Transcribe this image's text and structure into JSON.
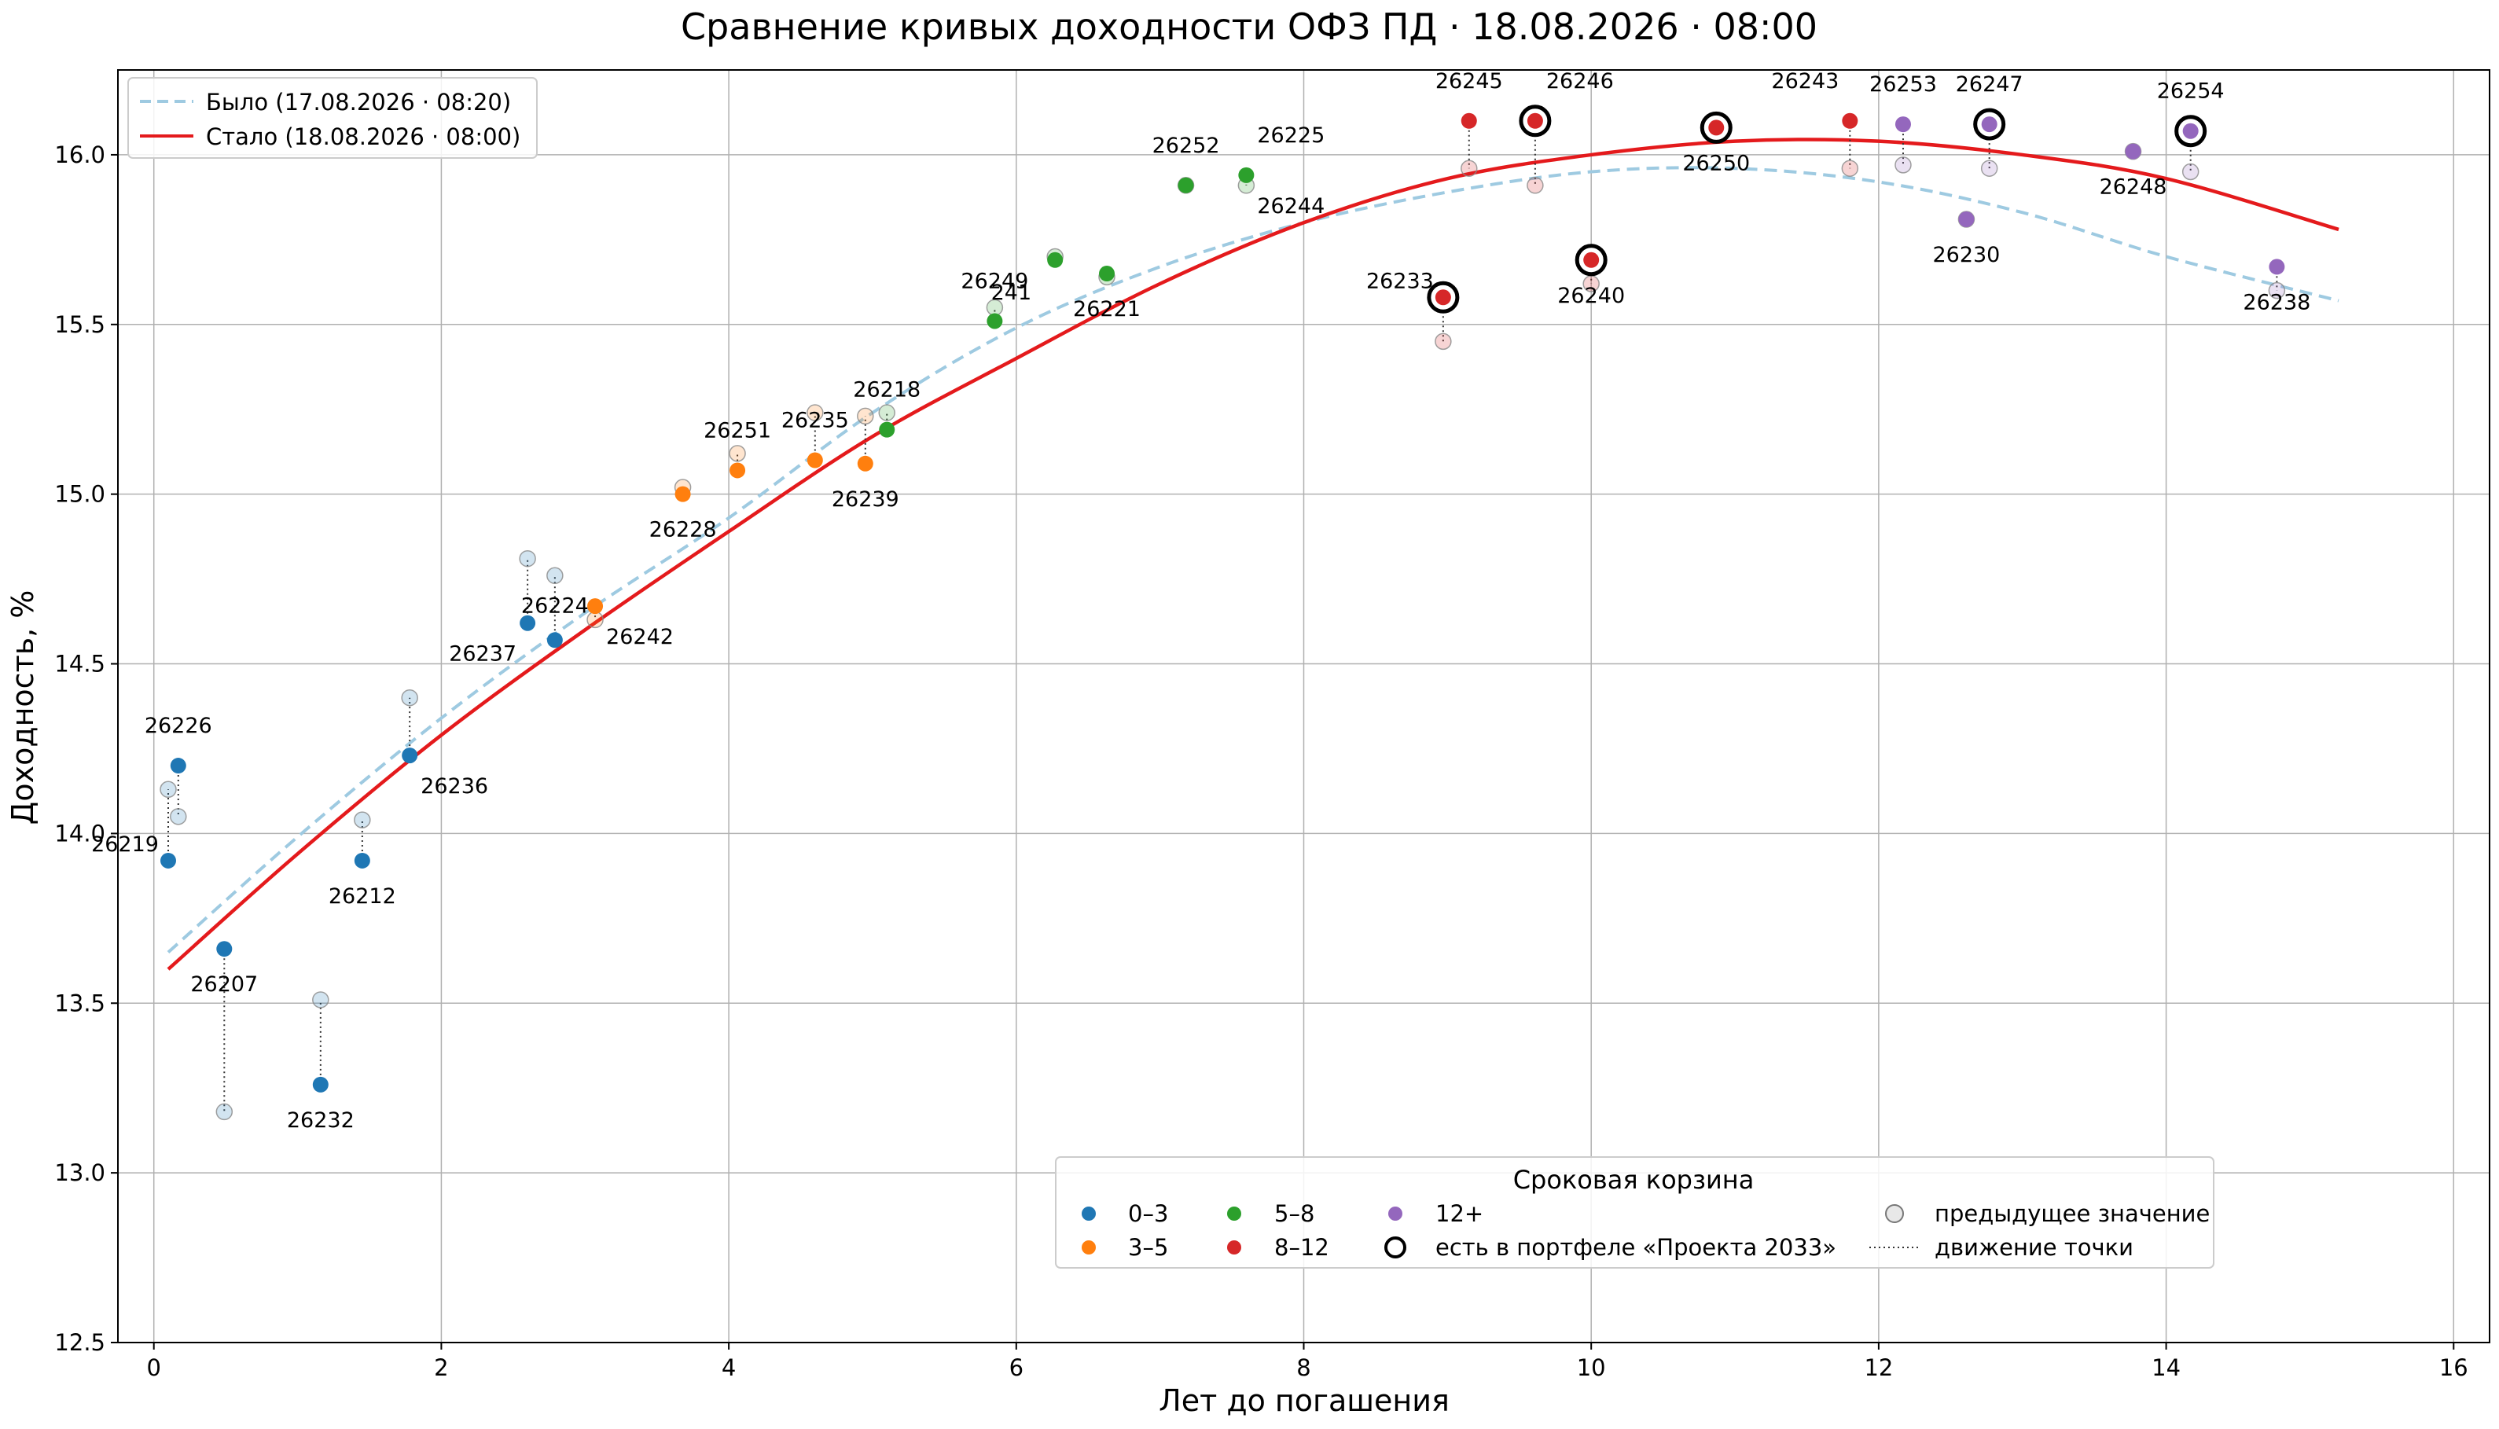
{
  "chart_data": {
    "type": "scatter",
    "title": "Сравнение кривых доходности ОФЗ ПД · 18.08.2026 · 08:00",
    "xlabel": "Лет до погашения",
    "ylabel": "Доходность, %",
    "xlim": [
      -0.25,
      16.25
    ],
    "ylim": [
      12.5,
      16.25
    ],
    "xticks": [
      0,
      2,
      4,
      6,
      8,
      10,
      12,
      14,
      16
    ],
    "yticks": [
      12.5,
      13.0,
      13.5,
      14.0,
      14.5,
      15.0,
      15.5,
      16.0
    ],
    "ytick_labels": [
      "12.5",
      "13.0",
      "13.5",
      "14.0",
      "14.5",
      "15.0",
      "15.5",
      "16.0"
    ],
    "grid": true,
    "curves": [
      {
        "name": "Было (17.08.2026 · 08:20)",
        "style": "dashed",
        "color": "#9ecae1",
        "x": [
          0.1,
          1,
          2,
          3,
          4,
          5,
          6,
          7,
          8,
          9,
          10,
          11,
          12,
          13,
          14,
          15.2
        ],
        "y": [
          13.65,
          13.99,
          14.34,
          14.65,
          14.93,
          15.24,
          15.49,
          15.67,
          15.8,
          15.89,
          15.95,
          15.96,
          15.92,
          15.83,
          15.7,
          15.57
        ]
      },
      {
        "name": "Стало (18.08.2026 · 08:00)",
        "style": "solid",
        "color": "#e41a1c",
        "x": [
          0.1,
          1,
          2,
          3,
          4,
          5,
          6,
          7,
          8,
          9,
          10,
          11,
          12,
          13,
          14,
          15.2
        ],
        "y": [
          13.6,
          13.94,
          14.29,
          14.6,
          14.89,
          15.17,
          15.4,
          15.62,
          15.8,
          15.93,
          16.0,
          16.04,
          16.04,
          16.0,
          15.93,
          15.78
        ]
      }
    ],
    "buckets": [
      {
        "name": "0–3",
        "color": "#1f77b4"
      },
      {
        "name": "3–5",
        "color": "#ff7f0e"
      },
      {
        "name": "5–8",
        "color": "#2ca02c"
      },
      {
        "name": "8–12",
        "color": "#d62728"
      },
      {
        "name": "12+",
        "color": "#9467bd"
      }
    ],
    "legend_extra": {
      "portfolio": "есть в портфеле «Проекта 2033»",
      "previous": "предыдущее значение",
      "movement": "движение точки"
    },
    "legend_title": "Сроковая корзина",
    "legend_curves_position": "upper-left",
    "legend_buckets_position": "lower-right",
    "points": [
      {
        "label": "26219",
        "x": 0.1,
        "y": 13.92,
        "prev": 14.13,
        "bucket": 0,
        "portfolio": false,
        "lpos": "left"
      },
      {
        "label": "26226",
        "x": 0.17,
        "y": 14.2,
        "prev": 14.05,
        "bucket": 0,
        "portfolio": false,
        "lpos": "above"
      },
      {
        "label": "26207",
        "x": 0.49,
        "y": 13.66,
        "prev": 13.18,
        "bucket": 0,
        "portfolio": false,
        "lpos": "below"
      },
      {
        "label": "26232",
        "x": 1.16,
        "y": 13.26,
        "prev": 13.51,
        "bucket": 0,
        "portfolio": false,
        "lpos": "below"
      },
      {
        "label": "26212",
        "x": 1.45,
        "y": 13.92,
        "prev": 14.04,
        "bucket": 0,
        "portfolio": false,
        "lpos": "below"
      },
      {
        "label": "26236",
        "x": 1.78,
        "y": 14.23,
        "prev": 14.4,
        "bucket": 0,
        "portfolio": false,
        "lpos": "below-right"
      },
      {
        "label": "26237",
        "x": 2.6,
        "y": 14.62,
        "prev": 14.81,
        "bucket": 0,
        "portfolio": false,
        "lpos": "below-left"
      },
      {
        "label": "26224",
        "x": 2.79,
        "y": 14.57,
        "prev": 14.76,
        "bucket": 0,
        "portfolio": false,
        "lpos": "above-mid"
      },
      {
        "label": "26242",
        "x": 3.07,
        "y": 14.67,
        "prev": 14.63,
        "bucket": 1,
        "portfolio": false,
        "lpos": "below-right"
      },
      {
        "label": "26228",
        "x": 3.68,
        "y": 15.0,
        "prev": 15.02,
        "bucket": 1,
        "portfolio": false,
        "lpos": "below"
      },
      {
        "label": "26251",
        "x": 4.06,
        "y": 15.07,
        "prev": 15.12,
        "bucket": 1,
        "portfolio": false,
        "lpos": "above"
      },
      {
        "label": "26235",
        "x": 4.6,
        "y": 15.1,
        "prev": 15.24,
        "bucket": 1,
        "portfolio": false,
        "lpos": "above"
      },
      {
        "label": "26239",
        "x": 4.95,
        "y": 15.09,
        "prev": 15.23,
        "bucket": 1,
        "portfolio": false,
        "lpos": "below"
      },
      {
        "label": "26218",
        "x": 5.1,
        "y": 15.19,
        "prev": 15.24,
        "bucket": 2,
        "portfolio": false,
        "lpos": "above"
      },
      {
        "label": "26249",
        "x": 5.85,
        "y": 15.51,
        "prev": 15.55,
        "bucket": 2,
        "portfolio": false,
        "lpos": "above"
      },
      {
        "label": "241",
        "x": 6.27,
        "y": 15.69,
        "prev": 15.7,
        "bucket": 2,
        "portfolio": false,
        "lpos": "below-left-short"
      },
      {
        "label": "26221",
        "x": 6.63,
        "y": 15.65,
        "prev": 15.64,
        "bucket": 2,
        "portfolio": false,
        "lpos": "below"
      },
      {
        "label": "26252",
        "x": 7.18,
        "y": 15.91,
        "prev": 15.91,
        "bucket": 2,
        "portfolio": false,
        "lpos": "above"
      },
      {
        "label": "26225",
        "x": 7.6,
        "y": 15.94,
        "prev": 15.91,
        "bucket": 2,
        "portfolio": false,
        "lpos": "above-right"
      },
      {
        "label": "26244",
        "x": 7.6,
        "y": 15.94,
        "prev": 15.91,
        "bucket": 2,
        "portfolio": false,
        "lpos": "below-right",
        "hide_marker": true
      },
      {
        "label": "26233",
        "x": 8.97,
        "y": 15.58,
        "prev": 15.45,
        "bucket": 3,
        "portfolio": true,
        "lpos": "left"
      },
      {
        "label": "26245",
        "x": 9.15,
        "y": 16.1,
        "prev": 15.96,
        "bucket": 3,
        "portfolio": false,
        "lpos": "above"
      },
      {
        "label": "26246",
        "x": 9.61,
        "y": 16.1,
        "prev": 15.91,
        "bucket": 3,
        "portfolio": true,
        "lpos": "above-right"
      },
      {
        "label": "26240",
        "x": 10.0,
        "y": 15.69,
        "prev": 15.62,
        "bucket": 3,
        "portfolio": true,
        "lpos": "below"
      },
      {
        "label": "26250",
        "x": 10.87,
        "y": 16.08,
        "prev": 16.07,
        "bucket": 3,
        "portfolio": true,
        "lpos": "below"
      },
      {
        "label": "26243",
        "x": 11.8,
        "y": 16.1,
        "prev": 15.96,
        "bucket": 3,
        "portfolio": false,
        "lpos": "above-left"
      },
      {
        "label": "26253",
        "x": 12.17,
        "y": 16.09,
        "prev": 15.97,
        "bucket": 4,
        "portfolio": false,
        "lpos": "above"
      },
      {
        "label": "26230",
        "x": 12.61,
        "y": 15.81,
        "prev": 15.81,
        "bucket": 4,
        "portfolio": false,
        "lpos": "below"
      },
      {
        "label": "26247",
        "x": 12.77,
        "y": 16.09,
        "prev": 15.96,
        "bucket": 4,
        "portfolio": true,
        "lpos": "above"
      },
      {
        "label": "26248",
        "x": 13.77,
        "y": 16.01,
        "prev": 16.01,
        "bucket": 4,
        "portfolio": false,
        "lpos": "below"
      },
      {
        "label": "26254",
        "x": 14.17,
        "y": 16.07,
        "prev": 15.95,
        "bucket": 4,
        "portfolio": true,
        "lpos": "above"
      },
      {
        "label": "26238",
        "x": 14.77,
        "y": 15.67,
        "prev": 15.6,
        "bucket": 4,
        "portfolio": false,
        "lpos": "below"
      }
    ]
  }
}
